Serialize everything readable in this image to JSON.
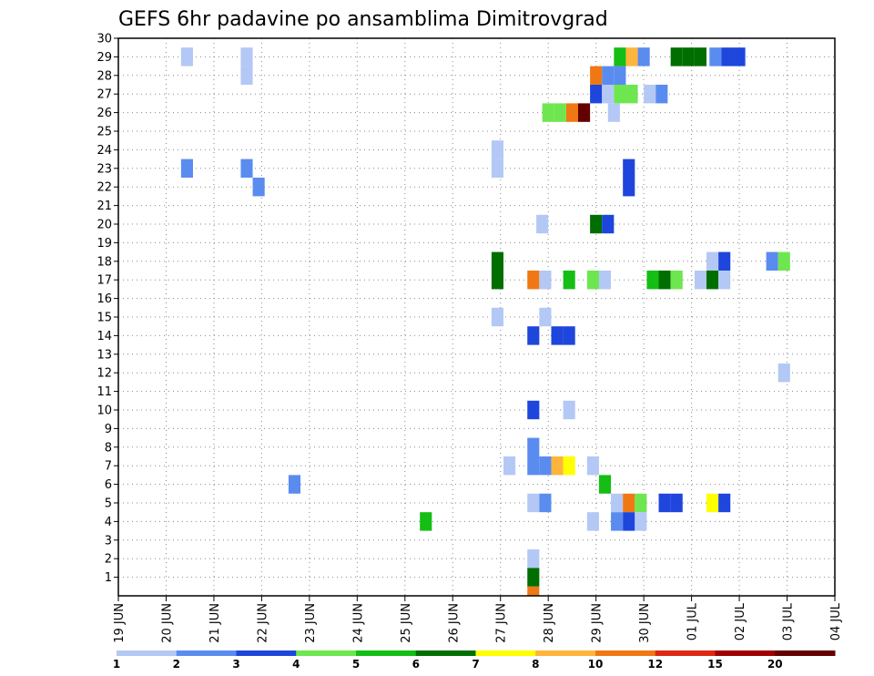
{
  "chart_data": {
    "type": "heatmap",
    "title": "GEFS 6hr padavine po ansamblima Dimitrovgrad",
    "x_tick_labels": [
      "19 JUN",
      "20 JUN",
      "21 JUN",
      "22 JUN",
      "23 JUN",
      "24 JUN",
      "25 JUN",
      "26 JUN",
      "27 JUN",
      "28 JUN",
      "29 JUN",
      "30 JUN",
      "01 JUL",
      "02 JUL",
      "03 JUL",
      "04 JUL"
    ],
    "y_tick_labels": [
      "1",
      "2",
      "3",
      "4",
      "5",
      "6",
      "7",
      "8",
      "9",
      "10",
      "11",
      "12",
      "13",
      "14",
      "15",
      "16",
      "17",
      "18",
      "19",
      "20",
      "21",
      "22",
      "23",
      "24",
      "25",
      "26",
      "27",
      "28",
      "29",
      "30"
    ],
    "x_unit": "6-hour steps from 19 JUN 00Z",
    "xlim": [
      0,
      60
    ],
    "ylim": [
      0,
      30
    ],
    "grid": true,
    "colorbar": {
      "labels": [
        "1",
        "2",
        "3",
        "4",
        "5",
        "6",
        "7",
        "8",
        "10",
        "12",
        "15",
        "20"
      ],
      "colors": [
        "#b4c8f5",
        "#5a8cf0",
        "#1e46dc",
        "#6ee650",
        "#14be14",
        "#006e00",
        "#ffff00",
        "#ffb43c",
        "#f07814",
        "#dc2814",
        "#a00000",
        "#640000"
      ]
    },
    "cells": [
      {
        "t": 5.75,
        "m": 29,
        "v": 1.5
      },
      {
        "t": 10.75,
        "m": 29,
        "v": 1.5
      },
      {
        "t": 10.75,
        "m": 28,
        "v": 1.5
      },
      {
        "t": 5.75,
        "m": 23,
        "v": 2.5
      },
      {
        "t": 10.75,
        "m": 23,
        "v": 2.5
      },
      {
        "t": 11.75,
        "m": 22,
        "v": 2.5
      },
      {
        "t": 31.75,
        "m": 24,
        "v": 1.5
      },
      {
        "t": 31.75,
        "m": 23,
        "v": 1.5
      },
      {
        "t": 42.75,
        "m": 23,
        "v": 3.5
      },
      {
        "t": 42.75,
        "m": 22,
        "v": 3.5
      },
      {
        "t": 46.75,
        "m": 29,
        "v": 6
      },
      {
        "t": 47.75,
        "m": 29,
        "v": 6
      },
      {
        "t": 48.75,
        "m": 29,
        "v": 6
      },
      {
        "t": 42,
        "m": 29,
        "v": 5.5
      },
      {
        "t": 43,
        "m": 29,
        "v": 9
      },
      {
        "t": 44,
        "m": 29,
        "v": 2.5
      },
      {
        "t": 50,
        "m": 29,
        "v": 2.5
      },
      {
        "t": 51,
        "m": 29,
        "v": 3.5
      },
      {
        "t": 52,
        "m": 29,
        "v": 3.5
      },
      {
        "t": 40,
        "m": 28,
        "v": 11
      },
      {
        "t": 41,
        "m": 28,
        "v": 2.5
      },
      {
        "t": 42,
        "m": 28,
        "v": 2.5
      },
      {
        "t": 40,
        "m": 27,
        "v": 3.5
      },
      {
        "t": 41,
        "m": 27,
        "v": 1.5
      },
      {
        "t": 42,
        "m": 27,
        "v": 4.5
      },
      {
        "t": 43,
        "m": 27,
        "v": 4.5
      },
      {
        "t": 44.5,
        "m": 27,
        "v": 1.5
      },
      {
        "t": 45.5,
        "m": 27,
        "v": 2.5
      },
      {
        "t": 36,
        "m": 26,
        "v": 4.5
      },
      {
        "t": 37,
        "m": 26,
        "v": 4.5
      },
      {
        "t": 38,
        "m": 26,
        "v": 11
      },
      {
        "t": 39,
        "m": 26,
        "v": 25
      },
      {
        "t": 41.5,
        "m": 26,
        "v": 1.5
      },
      {
        "t": 40,
        "m": 20,
        "v": 6
      },
      {
        "t": 41,
        "m": 20,
        "v": 3.5
      },
      {
        "t": 35.5,
        "m": 20,
        "v": 1.5
      },
      {
        "t": 31.75,
        "m": 18,
        "v": 6
      },
      {
        "t": 31.75,
        "m": 17,
        "v": 6
      },
      {
        "t": 34.75,
        "m": 17,
        "v": 11
      },
      {
        "t": 35.75,
        "m": 17,
        "v": 1.5
      },
      {
        "t": 37.75,
        "m": 17,
        "v": 5.5
      },
      {
        "t": 39.75,
        "m": 17,
        "v": 4.5
      },
      {
        "t": 40.75,
        "m": 17,
        "v": 1.5
      },
      {
        "t": 44.75,
        "m": 17,
        "v": 5.5
      },
      {
        "t": 45.75,
        "m": 17,
        "v": 6
      },
      {
        "t": 46.75,
        "m": 17,
        "v": 4.5
      },
      {
        "t": 48.75,
        "m": 17,
        "v": 1.5
      },
      {
        "t": 49.75,
        "m": 17,
        "v": 6
      },
      {
        "t": 50.75,
        "m": 17,
        "v": 1.5
      },
      {
        "t": 49.75,
        "m": 18,
        "v": 1.5
      },
      {
        "t": 50.75,
        "m": 18,
        "v": 3.5
      },
      {
        "t": 54.75,
        "m": 18,
        "v": 2.5
      },
      {
        "t": 55.75,
        "m": 18,
        "v": 4.5
      },
      {
        "t": 31.75,
        "m": 15,
        "v": 1.5
      },
      {
        "t": 35.75,
        "m": 15,
        "v": 1.5
      },
      {
        "t": 34.75,
        "m": 14,
        "v": 3.5
      },
      {
        "t": 36.75,
        "m": 14,
        "v": 3.5
      },
      {
        "t": 37.75,
        "m": 14,
        "v": 3.5
      },
      {
        "t": 55.75,
        "m": 12,
        "v": 1.5
      },
      {
        "t": 34.75,
        "m": 10,
        "v": 3.5
      },
      {
        "t": 37.75,
        "m": 10,
        "v": 1.5
      },
      {
        "t": 34.75,
        "m": 8,
        "v": 2.5
      },
      {
        "t": 34.75,
        "m": 7,
        "v": 2.5
      },
      {
        "t": 32.75,
        "m": 7,
        "v": 1.5
      },
      {
        "t": 35.75,
        "m": 7,
        "v": 2.5
      },
      {
        "t": 36.75,
        "m": 7,
        "v": 9
      },
      {
        "t": 37.75,
        "m": 7,
        "v": 7.5
      },
      {
        "t": 39.75,
        "m": 7,
        "v": 1.5
      },
      {
        "t": 14.75,
        "m": 6,
        "v": 2.5
      },
      {
        "t": 40.75,
        "m": 6,
        "v": 5.5
      },
      {
        "t": 34.75,
        "m": 5,
        "v": 1.5
      },
      {
        "t": 35.75,
        "m": 5,
        "v": 2.5
      },
      {
        "t": 41.75,
        "m": 5,
        "v": 1.5
      },
      {
        "t": 42.75,
        "m": 5,
        "v": 11
      },
      {
        "t": 43.75,
        "m": 5,
        "v": 4.5
      },
      {
        "t": 45.75,
        "m": 5,
        "v": 3.5
      },
      {
        "t": 46.75,
        "m": 5,
        "v": 3.5
      },
      {
        "t": 49.75,
        "m": 5,
        "v": 7.5
      },
      {
        "t": 50.75,
        "m": 5,
        "v": 3.5
      },
      {
        "t": 25.75,
        "m": 4,
        "v": 5.5
      },
      {
        "t": 39.75,
        "m": 4,
        "v": 1.5
      },
      {
        "t": 41.75,
        "m": 4,
        "v": 2.5
      },
      {
        "t": 42.75,
        "m": 4,
        "v": 3.5
      },
      {
        "t": 43.75,
        "m": 4,
        "v": 1.5
      },
      {
        "t": 34.75,
        "m": 2,
        "v": 1.5
      },
      {
        "t": 34.75,
        "m": 1,
        "v": 6
      },
      {
        "t": 34.75,
        "m": 0,
        "v": 11
      }
    ]
  }
}
